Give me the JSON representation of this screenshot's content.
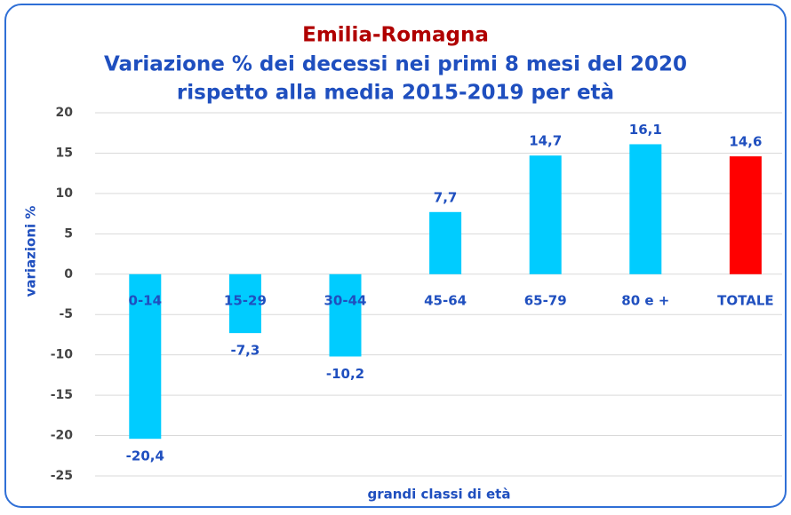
{
  "chart_data": {
    "type": "bar",
    "title": "Emilia-Romagna",
    "subtitle": [
      "Variazione % dei decessi nei primi 8 mesi del 2020",
      "rispetto alla media 2015-2019 per età"
    ],
    "x_label": "grandi classi di età",
    "y_label": "variazioni  %",
    "categories": [
      "0-14",
      "15-29",
      "30-44",
      "45-64",
      "65-79",
      "80 e +",
      "TOTALE"
    ],
    "values": [
      -20.4,
      -7.3,
      -10.2,
      7.7,
      14.7,
      16.1,
      14.6
    ],
    "value_labels": [
      "-20,4",
      "-7,3",
      "-10,2",
      "7,7",
      "14,7",
      "16,1",
      "14,6"
    ],
    "colors": [
      "#00ccff",
      "#00ccff",
      "#00ccff",
      "#00ccff",
      "#00ccff",
      "#00ccff",
      "#ff0000"
    ],
    "ylim": [
      -25,
      20
    ],
    "yticks": [
      -25,
      -20,
      -15,
      -10,
      -5,
      0,
      5,
      10,
      15,
      20
    ],
    "grid": true
  }
}
